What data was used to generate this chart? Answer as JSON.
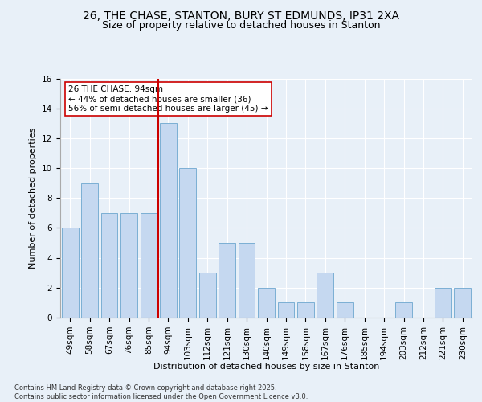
{
  "title1": "26, THE CHASE, STANTON, BURY ST EDMUNDS, IP31 2XA",
  "title2": "Size of property relative to detached houses in Stanton",
  "xlabel": "Distribution of detached houses by size in Stanton",
  "ylabel": "Number of detached properties",
  "categories": [
    "49sqm",
    "58sqm",
    "67sqm",
    "76sqm",
    "85sqm",
    "94sqm",
    "103sqm",
    "112sqm",
    "121sqm",
    "130sqm",
    "140sqm",
    "149sqm",
    "158sqm",
    "167sqm",
    "176sqm",
    "185sqm",
    "194sqm",
    "203sqm",
    "212sqm",
    "221sqm",
    "230sqm"
  ],
  "values": [
    6,
    9,
    7,
    7,
    7,
    13,
    10,
    3,
    5,
    5,
    2,
    1,
    1,
    3,
    1,
    0,
    0,
    1,
    0,
    2,
    2
  ],
  "bar_color": "#c5d8f0",
  "bar_edge_color": "#7bafd4",
  "red_line_index": 5,
  "annotation_text": "26 THE CHASE: 94sqm\n← 44% of detached houses are smaller (36)\n56% of semi-detached houses are larger (45) →",
  "annotation_box_color": "#ffffff",
  "annotation_box_edge": "#cc0000",
  "redline_color": "#cc0000",
  "ylim": [
    0,
    16
  ],
  "yticks": [
    0,
    2,
    4,
    6,
    8,
    10,
    12,
    14,
    16
  ],
  "background_color": "#e8f0f8",
  "plot_background": "#e8f0f8",
  "footer_text": "Contains HM Land Registry data © Crown copyright and database right 2025.\nContains public sector information licensed under the Open Government Licence v3.0.",
  "title_fontsize": 10,
  "subtitle_fontsize": 9,
  "axis_label_fontsize": 8,
  "tick_fontsize": 7.5,
  "footer_fontsize": 6
}
